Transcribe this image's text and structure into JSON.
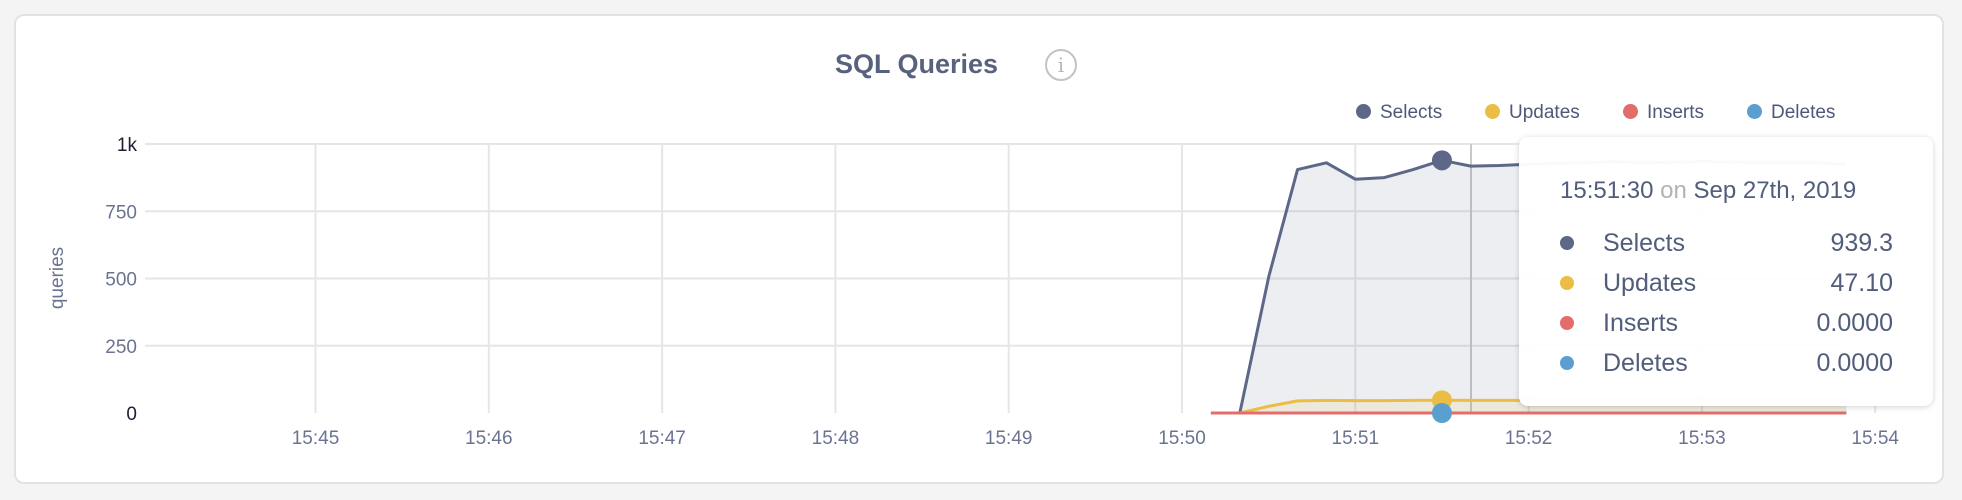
{
  "chart_data": {
    "type": "area",
    "title": "SQL Queries",
    "ylabel": "queries",
    "xlabel": "",
    "ylim": [
      0,
      1000
    ],
    "yticks": [
      {
        "value": 0,
        "label": "0"
      },
      {
        "value": 250,
        "label": "250"
      },
      {
        "value": 500,
        "label": "500"
      },
      {
        "value": 750,
        "label": "750"
      },
      {
        "value": 1000,
        "label": "1k"
      }
    ],
    "xlim": [
      "15:44:08",
      "15:54:00"
    ],
    "xticks": [
      "15:45",
      "15:46",
      "15:47",
      "15:48",
      "15:49",
      "15:50",
      "15:51",
      "15:52",
      "15:53",
      "15:54"
    ],
    "grid": true,
    "legend_position": "top-right",
    "series": [
      {
        "name": "Selects",
        "color": "#5d6888",
        "x": [
          "15:50:20",
          "15:50:30",
          "15:50:40",
          "15:50:50",
          "15:51:00",
          "15:51:10",
          "15:51:20",
          "15:51:30",
          "15:51:40",
          "15:51:50",
          "15:52:00",
          "15:52:10",
          "15:52:20",
          "15:52:30",
          "15:52:40",
          "15:52:50",
          "15:53:00",
          "15:53:10",
          "15:53:20",
          "15:53:30",
          "15:53:40",
          "15:53:50"
        ],
        "values": [
          0,
          506,
          905,
          930,
          869,
          875,
          905,
          939.3,
          918,
          920,
          925,
          928,
          930,
          935,
          930,
          932,
          935,
          933,
          930,
          931,
          930,
          925
        ]
      },
      {
        "name": "Updates",
        "color": "#ecbd45",
        "x": [
          "15:50:20",
          "15:50:30",
          "15:50:40",
          "15:50:50",
          "15:51:00",
          "15:51:10",
          "15:51:20",
          "15:51:30",
          "15:51:40",
          "15:51:50",
          "15:52:00",
          "15:52:10",
          "15:52:20",
          "15:52:30",
          "15:52:40",
          "15:52:50",
          "15:53:00",
          "15:53:10",
          "15:53:20",
          "15:53:30",
          "15:53:40",
          "15:53:50"
        ],
        "values": [
          0,
          25,
          45,
          47,
          46,
          46,
          47,
          47.1,
          47,
          47,
          47,
          47,
          47,
          47,
          47,
          47,
          47,
          47,
          47,
          47,
          47,
          47
        ]
      },
      {
        "name": "Inserts",
        "color": "#e36d6b",
        "x": [
          "15:50:10",
          "15:53:50"
        ],
        "values": [
          0,
          0
        ]
      },
      {
        "name": "Deletes",
        "color": "#5b9fd1",
        "x": [
          "15:50:10",
          "15:53:50"
        ],
        "values": [
          0,
          0
        ]
      }
    ],
    "hover_time": "15:51:30"
  },
  "header": {
    "title": "SQL Queries",
    "info_icon": "info-icon"
  },
  "tooltip": {
    "time": "15:51:30",
    "on": "on",
    "date": "Sep 27th, 2019",
    "rows": [
      {
        "label": "Selects",
        "value": "939.3",
        "color": "#5d6888"
      },
      {
        "label": "Updates",
        "value": "47.10",
        "color": "#ecbd45"
      },
      {
        "label": "Inserts",
        "value": "0.0000",
        "color": "#e36d6b"
      },
      {
        "label": "Deletes",
        "value": "0.0000",
        "color": "#5b9fd1"
      }
    ]
  }
}
